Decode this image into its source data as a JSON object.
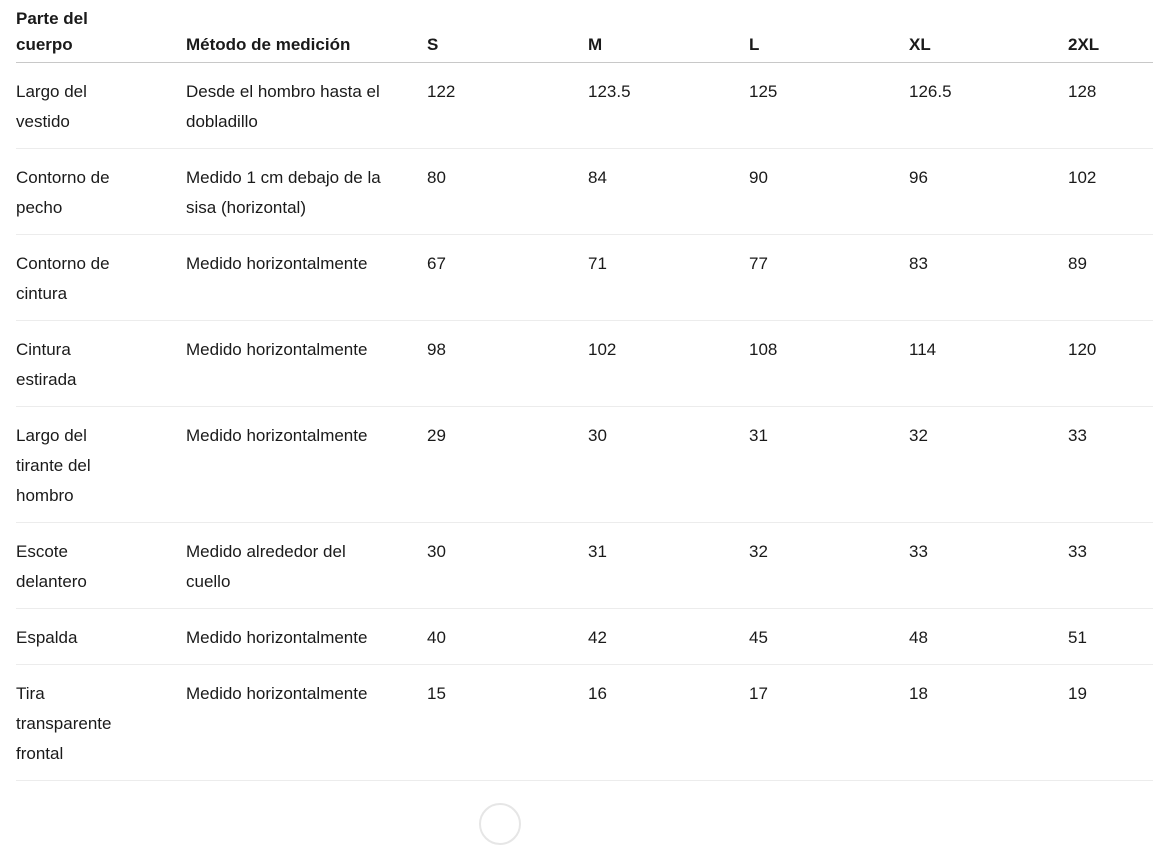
{
  "table": {
    "columns": {
      "part": "Parte del cuerpo",
      "method": "Método de medición",
      "s": "S",
      "m": "M",
      "l": "L",
      "xl": "XL",
      "xxl": "2XL"
    },
    "rows": [
      {
        "part": "Largo del vestido",
        "method": "Desde el hombro hasta el dobladillo",
        "values": [
          "122",
          "123.5",
          "125",
          "126.5",
          "128"
        ]
      },
      {
        "part": "Contorno de pecho",
        "method": "Medido 1 cm debajo de la sisa (horizontal)",
        "values": [
          "80",
          "84",
          "90",
          "96",
          "102"
        ]
      },
      {
        "part": "Contorno de cintura",
        "method": "Medido horizontalmente",
        "values": [
          "67",
          "71",
          "77",
          "83",
          "89"
        ]
      },
      {
        "part": "Cintura estirada",
        "method": "Medido horizontalmente",
        "values": [
          "98",
          "102",
          "108",
          "114",
          "120"
        ]
      },
      {
        "part": "Largo del tirante del hombro",
        "method": "Medido horizontalmente",
        "values": [
          "29",
          "30",
          "31",
          "32",
          "33"
        ]
      },
      {
        "part": "Escote delantero",
        "method": "Medido alrededor del cuello",
        "values": [
          "30",
          "31",
          "32",
          "33",
          "33"
        ]
      },
      {
        "part": "Espalda",
        "method": "Medido horizontalmente",
        "values": [
          "40",
          "42",
          "45",
          "48",
          "51"
        ]
      },
      {
        "part": "Tira transparente frontal",
        "method": "Medido horizontalmente",
        "values": [
          "15",
          "16",
          "17",
          "18",
          "19"
        ]
      }
    ]
  },
  "colors": {
    "text": "#1a1a1a",
    "header_border": "#c8c8c8",
    "row_border": "#ececec",
    "background": "#ffffff",
    "floating_button_border": "#e6e6e6"
  }
}
